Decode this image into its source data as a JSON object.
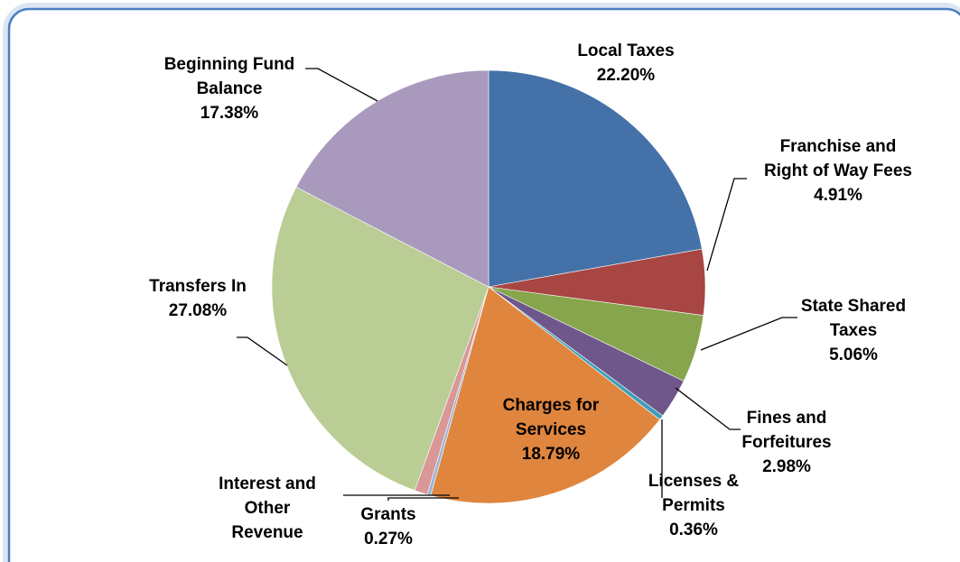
{
  "chart_data": {
    "type": "pie",
    "start_angle_deg": 0,
    "direction": "clockwise",
    "slices": [
      {
        "name": "Local Taxes",
        "value": 22.2,
        "label": "22.20%",
        "color": "#4472A8",
        "label_lines": [
          "Local Taxes",
          "22.20%"
        ]
      },
      {
        "name": "Franchise and Right of Way Fees",
        "value": 4.91,
        "label": "4.91%",
        "color": "#A84644",
        "label_lines": [
          "Franchise and",
          "Right of Way Fees",
          "4.91%"
        ]
      },
      {
        "name": "State Shared Taxes",
        "value": 5.06,
        "label": "5.06%",
        "color": "#87A54C",
        "label_lines": [
          "State Shared",
          "Taxes",
          "5.06%"
        ]
      },
      {
        "name": "Fines and Forfeitures",
        "value": 2.98,
        "label": "2.98%",
        "color": "#6F578C",
        "label_lines": [
          "Fines and",
          "Forfeitures",
          "2.98%"
        ]
      },
      {
        "name": "Licenses & Permits",
        "value": 0.36,
        "label": "0.36%",
        "color": "#3E9DB8",
        "label_lines": [
          "Licenses &",
          "Permits",
          "0.36%"
        ]
      },
      {
        "name": "Charges for Services",
        "value": 18.79,
        "label": "18.79%",
        "color": "#DF853E",
        "label_lines": [
          "Charges for",
          "Services",
          "18.79%"
        ]
      },
      {
        "name": "Grants",
        "value": 0.27,
        "label": "0.27%",
        "color": "#9DB4D8",
        "label_lines": [
          "Grants",
          "0.27%"
        ]
      },
      {
        "name": "Interest and Other Revenue",
        "value": 0.97,
        "label": "",
        "color": "#D99795",
        "label_lines": [
          "Interest and",
          "Other",
          "Revenue"
        ]
      },
      {
        "name": "Transfers In",
        "value": 27.08,
        "label": "27.08%",
        "color": "#B9CD95",
        "label_lines": [
          "Transfers In",
          "27.08%"
        ]
      },
      {
        "name": "Beginning Fund Balance",
        "value": 17.38,
        "label": "17.38%",
        "color": "#A99ABD",
        "label_lines": [
          "Beginning Fund",
          "Balance",
          "17.38%"
        ]
      }
    ],
    "frame_color": "#4A7FC1"
  }
}
